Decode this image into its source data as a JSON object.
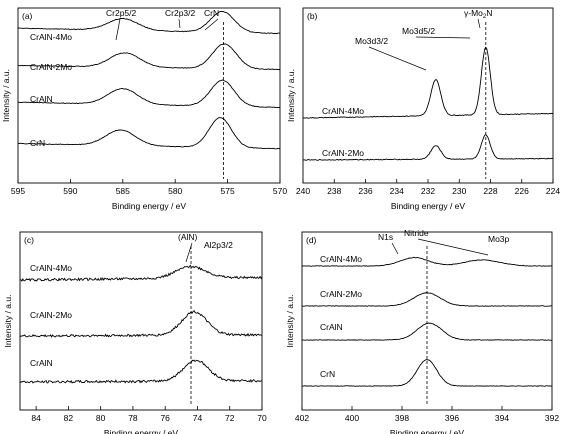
{
  "chart_data": [
    {
      "panel": "(a)",
      "type": "line",
      "xlabel": "Binding energy / eV",
      "ylabel": "Intensity / a.u.",
      "xlim": [
        595,
        570
      ],
      "x_ticks": [
        "595",
        "590",
        "585",
        "580",
        "575",
        "570"
      ],
      "reference_line_x": 575.4,
      "annotations": [
        {
          "text": "Cr2p5/2",
          "x": 584.5
        },
        {
          "text": "Cr2p3/2",
          "x": 578.5
        },
        {
          "text": "CrN",
          "x": 575.4
        }
      ],
      "series": [
        {
          "name": "CrAlN-4Mo",
          "peaks": [
            {
              "x": 585.0,
              "h": 0.45,
              "w": 2.0
            },
            {
              "x": 575.5,
              "h": 0.8,
              "w": 1.6
            }
          ],
          "baseline": [
            0.3,
            0.1
          ]
        },
        {
          "name": "CrAlN-2Mo",
          "peaks": [
            {
              "x": 584.8,
              "h": 0.55,
              "w": 2.0
            },
            {
              "x": 575.3,
              "h": 0.95,
              "w": 1.6
            }
          ],
          "baseline": [
            0.25,
            0.1
          ]
        },
        {
          "name": "CrAlN",
          "peaks": [
            {
              "x": 585.0,
              "h": 0.6,
              "w": 2.0
            },
            {
              "x": 575.5,
              "h": 1.0,
              "w": 1.6
            }
          ],
          "baseline": [
            0.3,
            0.1
          ]
        },
        {
          "name": "CrN",
          "peaks": [
            {
              "x": 585.2,
              "h": 0.6,
              "w": 2.0
            },
            {
              "x": 575.7,
              "h": 1.15,
              "w": 1.5
            }
          ],
          "baseline": [
            0.25,
            0.05
          ]
        }
      ]
    },
    {
      "panel": "(b)",
      "type": "line",
      "xlabel": "Binding energy / eV",
      "ylabel": "Intensity / a.u.",
      "xlim": [
        240,
        224
      ],
      "x_ticks": [
        "240",
        "238",
        "236",
        "234",
        "232",
        "230",
        "228",
        "226",
        "224"
      ],
      "reference_line_x": 228.3,
      "annotations": [
        {
          "text": "Mo3d3/2",
          "x": 231.5
        },
        {
          "text": "Mo3d5/2",
          "x": 228.3
        },
        {
          "text": "γ-Mo",
          "sub": "2",
          "tail": "N",
          "x": 228.3
        }
      ],
      "series": [
        {
          "name": "CrAlN-4Mo",
          "peaks": [
            {
              "x": 231.5,
              "h": 1.2,
              "w": 0.45
            },
            {
              "x": 228.3,
              "h": 2.25,
              "w": 0.4
            }
          ],
          "baseline": [
            0.0,
            0.15
          ]
        },
        {
          "name": "CrAlN-2Mo",
          "peaks": [
            {
              "x": 231.5,
              "h": 0.45,
              "w": 0.45
            },
            {
              "x": 228.3,
              "h": 0.8,
              "w": 0.4
            }
          ],
          "baseline": [
            0.0,
            0.05
          ]
        }
      ]
    },
    {
      "panel": "(c)",
      "type": "line",
      "xlabel": "Binding energy / eV",
      "ylabel": "Intensity / a.u.",
      "xlim": [
        85,
        70
      ],
      "x_ticks": [
        "84",
        "82",
        "80",
        "78",
        "76",
        "74",
        "72",
        "70"
      ],
      "reference_line_x": 74.4,
      "annotations": [
        {
          "text": "(AlN)",
          "x": 74.4
        },
        {
          "text": "Al2p3/2",
          "x": 73.0
        }
      ],
      "series": [
        {
          "name": "CrAlN-4Mo",
          "peaks": [
            {
              "x": 74.4,
              "h": 0.45,
              "w": 1.3
            }
          ],
          "baseline": [
            0.0,
            0.1
          ]
        },
        {
          "name": "CrAlN-2Mo",
          "peaks": [
            {
              "x": 74.2,
              "h": 0.9,
              "w": 1.1
            }
          ],
          "baseline": [
            0.0,
            0.05
          ]
        },
        {
          "name": "CrAlN",
          "peaks": [
            {
              "x": 74.1,
              "h": 0.8,
              "w": 1.1
            }
          ],
          "baseline": [
            0.0,
            0.05
          ]
        }
      ]
    },
    {
      "panel": "(d)",
      "type": "line",
      "xlabel": "Binding energy / eV",
      "ylabel": "Intensity / a.u.",
      "xlim": [
        402,
        392
      ],
      "x_ticks": [
        "402",
        "400",
        "398",
        "396",
        "394",
        "392"
      ],
      "reference_line_x": 397.0,
      "annotations": [
        {
          "text": "N1s",
          "x": 398.3
        },
        {
          "text": "Nitride",
          "x": 397.0
        },
        {
          "text": "Mo3p",
          "x": 394.5
        }
      ],
      "series": [
        {
          "name": "CrAlN-4Mo",
          "peaks": [
            {
              "x": 397.5,
              "h": 0.35,
              "w": 0.8
            },
            {
              "x": 394.8,
              "h": 0.25,
              "w": 1.0
            }
          ],
          "baseline": [
            0.0,
            0.0
          ]
        },
        {
          "name": "CrAlN-2Mo",
          "peaks": [
            {
              "x": 397.0,
              "h": 0.55,
              "w": 0.75
            }
          ],
          "baseline": [
            0.0,
            0.0
          ]
        },
        {
          "name": "CrAlN",
          "peaks": [
            {
              "x": 396.9,
              "h": 0.7,
              "w": 0.7
            }
          ],
          "baseline": [
            0.0,
            0.0
          ]
        },
        {
          "name": "CrN",
          "peaks": [
            {
              "x": 397.0,
              "h": 1.1,
              "w": 0.55
            }
          ],
          "baseline": [
            0.0,
            0.0
          ]
        }
      ]
    }
  ]
}
